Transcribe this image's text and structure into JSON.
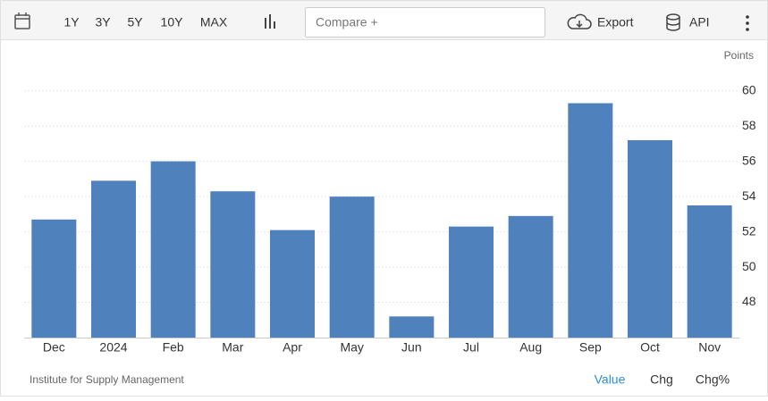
{
  "toolbar": {
    "ranges": [
      "1Y",
      "3Y",
      "5Y",
      "10Y",
      "MAX"
    ],
    "compare": "Compare +",
    "export": "Export",
    "api": "API"
  },
  "chart_data": {
    "type": "bar",
    "unit_label": "Points",
    "categories": [
      "Dec",
      "2024",
      "Feb",
      "Mar",
      "Apr",
      "May",
      "Jun",
      "Jul",
      "Aug",
      "Sep",
      "Oct",
      "Nov"
    ],
    "values": [
      52.7,
      54.9,
      56.0,
      54.3,
      52.1,
      54.0,
      47.2,
      52.3,
      52.9,
      59.3,
      57.2,
      53.5
    ],
    "color": "#4f81bd",
    "ylim": [
      46,
      61
    ],
    "yticks": [
      48,
      50,
      52,
      54,
      56,
      58,
      60
    ],
    "grid": true
  },
  "footer": {
    "source": "Institute for Supply Management",
    "modes": [
      "Value",
      "Chg",
      "Chg%"
    ]
  }
}
